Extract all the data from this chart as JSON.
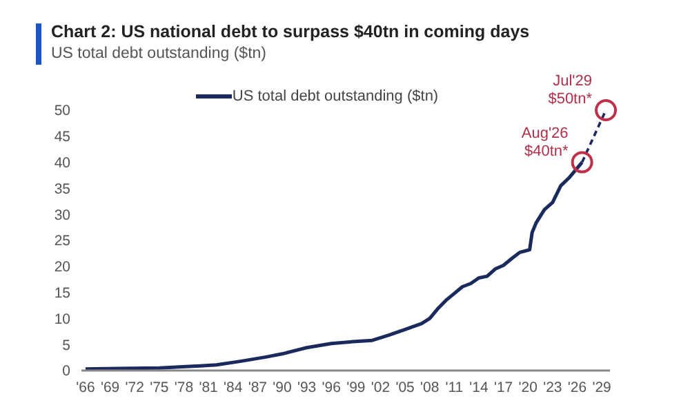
{
  "chart_data": {
    "type": "line",
    "title": "Chart 2: US national debt to surpass $40tn in coming days",
    "subtitle": "US total debt outstanding ($tn)",
    "xlim": [
      1965.5,
      2030
    ],
    "xticks": [
      {
        "value": 1966,
        "label": "'66"
      },
      {
        "value": 1969,
        "label": "'69"
      },
      {
        "value": 1972,
        "label": "'72"
      },
      {
        "value": 1975,
        "label": "'75"
      },
      {
        "value": 1978,
        "label": "'78"
      },
      {
        "value": 1981,
        "label": "'81"
      },
      {
        "value": 1984,
        "label": "'84"
      },
      {
        "value": 1987,
        "label": "'87"
      },
      {
        "value": 1990,
        "label": "'90"
      },
      {
        "value": 1993,
        "label": "'93"
      },
      {
        "value": 1996,
        "label": "'96"
      },
      {
        "value": 1999,
        "label": "'99"
      },
      {
        "value": 2002,
        "label": "'02"
      },
      {
        "value": 2005,
        "label": "'05"
      },
      {
        "value": 2008,
        "label": "'08"
      },
      {
        "value": 2011,
        "label": "'11"
      },
      {
        "value": 2014,
        "label": "'14"
      },
      {
        "value": 2017,
        "label": "'17"
      },
      {
        "value": 2020,
        "label": "'20"
      },
      {
        "value": 2023,
        "label": "'23"
      },
      {
        "value": 2026,
        "label": "'26"
      },
      {
        "value": 2029,
        "label": "'29"
      }
    ],
    "ylim": [
      0,
      50
    ],
    "yticks": [
      0,
      5,
      10,
      15,
      20,
      25,
      30,
      35,
      40,
      45,
      50
    ],
    "grid": false,
    "legend": "top",
    "series": [
      {
        "name": "US total debt outstanding ($tn)",
        "color": "#1b2a5c",
        "line_style": "solid",
        "x": [
          1966,
          1970,
          1975,
          1980,
          1982,
          1985,
          1988,
          1990,
          1993,
          1996,
          1999,
          2001,
          2003,
          2005,
          2007,
          2008,
          2009,
          2010,
          2011,
          2012,
          2013,
          2014,
          2015,
          2016,
          2017,
          2018,
          2019,
          2020.2,
          2020.5,
          2021,
          2022,
          2023,
          2024,
          2025,
          2026.6
        ],
        "values": [
          0.3,
          0.4,
          0.5,
          0.9,
          1.1,
          1.8,
          2.6,
          3.2,
          4.4,
          5.2,
          5.6,
          5.8,
          6.8,
          7.9,
          9,
          10,
          11.9,
          13.5,
          14.8,
          16.1,
          16.7,
          17.8,
          18.1,
          19.5,
          20.2,
          21.5,
          22.7,
          23.2,
          26.5,
          28.4,
          30.9,
          32.3,
          35.5,
          37,
          40
        ]
      },
      {
        "type": "line",
        "color": "#1b2a5c",
        "line_style": "dashed",
        "x": [
          2026.6,
          2029.5
        ],
        "values": [
          40,
          50
        ]
      },
      {
        "type": "scatter",
        "color": "#c0304a",
        "marker": "circle",
        "x": [
          2026.6,
          2029.5
        ],
        "values": [
          40,
          50
        ]
      }
    ],
    "annotations": [
      {
        "text": "Aug'26 $40tn*",
        "x": 2026.6,
        "y": 40
      },
      {
        "text": "Jul'29 $50tn*",
        "x": 2029.5,
        "y": 50
      }
    ]
  }
}
